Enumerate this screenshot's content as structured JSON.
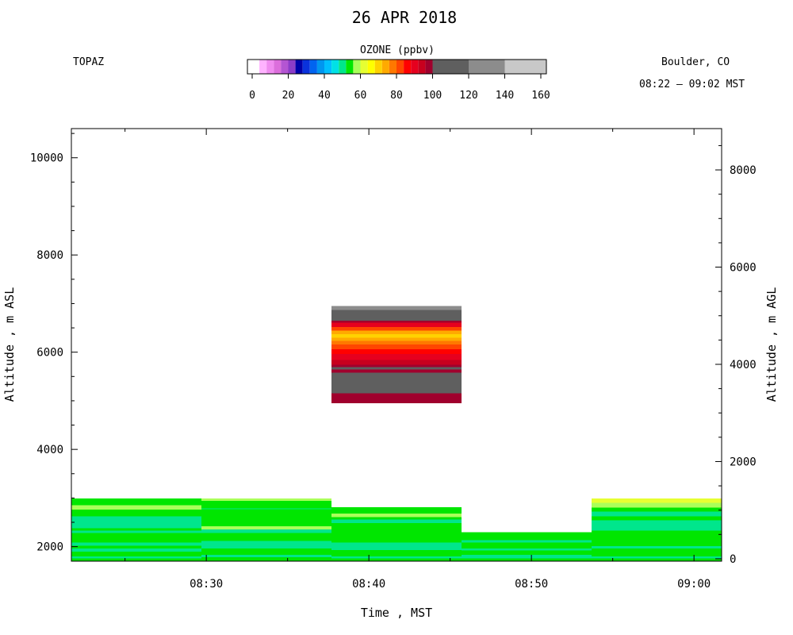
{
  "header": {
    "title": "26 APR 2018",
    "site": "TOPAZ",
    "location": "Boulder, CO",
    "time_range": "08:22 – 09:02 MST"
  },
  "colorbar": {
    "title": "OZONE (ppbv)",
    "ticks": [
      "0",
      "20",
      "40",
      "60",
      "80",
      "100",
      "120",
      "140",
      "160"
    ],
    "range": [
      0,
      160
    ],
    "bins": [
      {
        "from": 0,
        "to": 4,
        "color": "#ffffff"
      },
      {
        "from": 4,
        "to": 8,
        "color": "#ffb3ff"
      },
      {
        "from": 8,
        "to": 12,
        "color": "#f08cf0"
      },
      {
        "from": 12,
        "to": 16,
        "color": "#dc6edc"
      },
      {
        "from": 16,
        "to": 20,
        "color": "#b455d2"
      },
      {
        "from": 20,
        "to": 24,
        "color": "#8c3cc8"
      },
      {
        "from": 24,
        "to": 28,
        "color": "#0000aa"
      },
      {
        "from": 28,
        "to": 32,
        "color": "#0a32dc"
      },
      {
        "from": 32,
        "to": 36,
        "color": "#0064f0"
      },
      {
        "from": 36,
        "to": 40,
        "color": "#0096f0"
      },
      {
        "from": 40,
        "to": 44,
        "color": "#00beff"
      },
      {
        "from": 44,
        "to": 48,
        "color": "#00e1e6"
      },
      {
        "from": 48,
        "to": 52,
        "color": "#00e68c"
      },
      {
        "from": 52,
        "to": 56,
        "color": "#00e600"
      },
      {
        "from": 56,
        "to": 60,
        "color": "#aaff5a"
      },
      {
        "from": 60,
        "to": 64,
        "color": "#e6ff32"
      },
      {
        "from": 64,
        "to": 68,
        "color": "#ffff00"
      },
      {
        "from": 68,
        "to": 72,
        "color": "#ffd200"
      },
      {
        "from": 72,
        "to": 76,
        "color": "#ffaa00"
      },
      {
        "from": 76,
        "to": 80,
        "color": "#ff7800"
      },
      {
        "from": 80,
        "to": 84,
        "color": "#ff4600"
      },
      {
        "from": 84,
        "to": 88,
        "color": "#ff0000"
      },
      {
        "from": 88,
        "to": 92,
        "color": "#e6001e"
      },
      {
        "from": 92,
        "to": 96,
        "color": "#c8001e"
      },
      {
        "from": 96,
        "to": 100,
        "color": "#a0002d"
      },
      {
        "from": 100,
        "to": 120,
        "color": "#5f5f5f"
      },
      {
        "from": 120,
        "to": 140,
        "color": "#8c8c8c"
      },
      {
        "from": 140,
        "to": 160,
        "color": "#c8c8c8"
      }
    ]
  },
  "chart_data": {
    "type": "heatmap",
    "xlabel": "Time , MST",
    "ylabel_left": "Altitude , m ASL",
    "ylabel_right": "Altitude , m AGL",
    "x_ticks": [
      "08:30",
      "08:40",
      "08:50",
      "09:00"
    ],
    "x_tick_minutes": [
      510,
      520,
      530,
      540
    ],
    "x_range_minutes": [
      501.7,
      541.7
    ],
    "y_left_range": [
      1700,
      10600
    ],
    "y_left_ticks": [
      "2000",
      "4000",
      "6000",
      "8000",
      "10000"
    ],
    "y_left_tick_values": [
      2000,
      4000,
      6000,
      8000,
      10000
    ],
    "y_right_ticks": [
      "0",
      "2000",
      "4000",
      "6000",
      "8000"
    ],
    "y_right_tick_values": [
      0,
      2000,
      4000,
      6000,
      8000
    ],
    "surface_altitude_m_asl": 1750,
    "profiles": [
      {
        "start": 501.7,
        "end": 509.7,
        "layers": [
          {
            "bottom": 1700,
            "top": 1760,
            "ozone": 54
          },
          {
            "bottom": 1760,
            "top": 1800,
            "ozone": 50
          },
          {
            "bottom": 1800,
            "top": 1900,
            "ozone": 54
          },
          {
            "bottom": 1900,
            "top": 1960,
            "ozone": 50
          },
          {
            "bottom": 1960,
            "top": 2020,
            "ozone": 54
          },
          {
            "bottom": 2020,
            "top": 2080,
            "ozone": 50
          },
          {
            "bottom": 2080,
            "top": 2280,
            "ozone": 54
          },
          {
            "bottom": 2280,
            "top": 2330,
            "ozone": 50
          },
          {
            "bottom": 2330,
            "top": 2380,
            "ozone": 54
          },
          {
            "bottom": 2380,
            "top": 2620,
            "ozone": 50
          },
          {
            "bottom": 2620,
            "top": 2760,
            "ozone": 54
          },
          {
            "bottom": 2760,
            "top": 2850,
            "ozone": 58
          },
          {
            "bottom": 2850,
            "top": 2990,
            "ozone": 54
          }
        ]
      },
      {
        "start": 509.7,
        "end": 517.7,
        "layers": [
          {
            "bottom": 1700,
            "top": 1780,
            "ozone": 54
          },
          {
            "bottom": 1780,
            "top": 1830,
            "ozone": 50
          },
          {
            "bottom": 1830,
            "top": 1960,
            "ozone": 54
          },
          {
            "bottom": 1960,
            "top": 2120,
            "ozone": 50
          },
          {
            "bottom": 2120,
            "top": 2280,
            "ozone": 54
          },
          {
            "bottom": 2280,
            "top": 2350,
            "ozone": 50
          },
          {
            "bottom": 2350,
            "top": 2420,
            "ozone": 58
          },
          {
            "bottom": 2420,
            "top": 2770,
            "ozone": 54
          },
          {
            "bottom": 2770,
            "top": 2790,
            "ozone": 50
          },
          {
            "bottom": 2790,
            "top": 2940,
            "ozone": 54
          },
          {
            "bottom": 2940,
            "top": 2990,
            "ozone": 58
          }
        ]
      },
      {
        "start": 517.7,
        "end": 525.7,
        "layers": [
          {
            "bottom": 1700,
            "top": 1760,
            "ozone": 54
          },
          {
            "bottom": 1760,
            "top": 1800,
            "ozone": 50
          },
          {
            "bottom": 1800,
            "top": 1930,
            "ozone": 54
          },
          {
            "bottom": 1930,
            "top": 2080,
            "ozone": 50
          },
          {
            "bottom": 2080,
            "top": 2480,
            "ozone": 54
          },
          {
            "bottom": 2480,
            "top": 2560,
            "ozone": 50
          },
          {
            "bottom": 2560,
            "top": 2610,
            "ozone": 54
          },
          {
            "bottom": 2610,
            "top": 2680,
            "ozone": 58
          },
          {
            "bottom": 2680,
            "top": 2810,
            "ozone": 54
          },
          {
            "bottom": 4950,
            "top": 5150,
            "ozone": 97
          },
          {
            "bottom": 5150,
            "top": 5580,
            "ozone": 110
          },
          {
            "bottom": 5580,
            "top": 5640,
            "ozone": 97
          },
          {
            "bottom": 5640,
            "top": 5690,
            "ozone": 110
          },
          {
            "bottom": 5690,
            "top": 5740,
            "ozone": 97
          },
          {
            "bottom": 5740,
            "top": 5840,
            "ozone": 94
          },
          {
            "bottom": 5840,
            "top": 5960,
            "ozone": 90
          },
          {
            "bottom": 5960,
            "top": 6060,
            "ozone": 86
          },
          {
            "bottom": 6060,
            "top": 6160,
            "ozone": 82
          },
          {
            "bottom": 6160,
            "top": 6230,
            "ozone": 78
          },
          {
            "bottom": 6230,
            "top": 6300,
            "ozone": 74
          },
          {
            "bottom": 6300,
            "top": 6370,
            "ozone": 70
          },
          {
            "bottom": 6370,
            "top": 6440,
            "ozone": 74
          },
          {
            "bottom": 6440,
            "top": 6520,
            "ozone": 82
          },
          {
            "bottom": 6520,
            "top": 6610,
            "ozone": 90
          },
          {
            "bottom": 6610,
            "top": 6650,
            "ozone": 97
          },
          {
            "bottom": 6650,
            "top": 6870,
            "ozone": 110
          },
          {
            "bottom": 6870,
            "top": 6950,
            "ozone": 130
          }
        ]
      },
      {
        "start": 525.7,
        "end": 533.7,
        "layers": [
          {
            "bottom": 1700,
            "top": 1760,
            "ozone": 54
          },
          {
            "bottom": 1760,
            "top": 1830,
            "ozone": 50
          },
          {
            "bottom": 1830,
            "top": 1920,
            "ozone": 54
          },
          {
            "bottom": 1920,
            "top": 1960,
            "ozone": 50
          },
          {
            "bottom": 1960,
            "top": 2080,
            "ozone": 54
          },
          {
            "bottom": 2080,
            "top": 2130,
            "ozone": 50
          },
          {
            "bottom": 2130,
            "top": 2300,
            "ozone": 54
          }
        ]
      },
      {
        "start": 533.7,
        "end": 541.7,
        "layers": [
          {
            "bottom": 1700,
            "top": 1760,
            "ozone": 54
          },
          {
            "bottom": 1760,
            "top": 1800,
            "ozone": 50
          },
          {
            "bottom": 1800,
            "top": 1960,
            "ozone": 54
          },
          {
            "bottom": 1960,
            "top": 2010,
            "ozone": 50
          },
          {
            "bottom": 2010,
            "top": 2330,
            "ozone": 54
          },
          {
            "bottom": 2330,
            "top": 2540,
            "ozone": 50
          },
          {
            "bottom": 2540,
            "top": 2620,
            "ozone": 54
          },
          {
            "bottom": 2620,
            "top": 2720,
            "ozone": 50
          },
          {
            "bottom": 2720,
            "top": 2800,
            "ozone": 54
          },
          {
            "bottom": 2800,
            "top": 2900,
            "ozone": 58
          },
          {
            "bottom": 2900,
            "top": 2990,
            "ozone": 60
          }
        ]
      }
    ]
  }
}
